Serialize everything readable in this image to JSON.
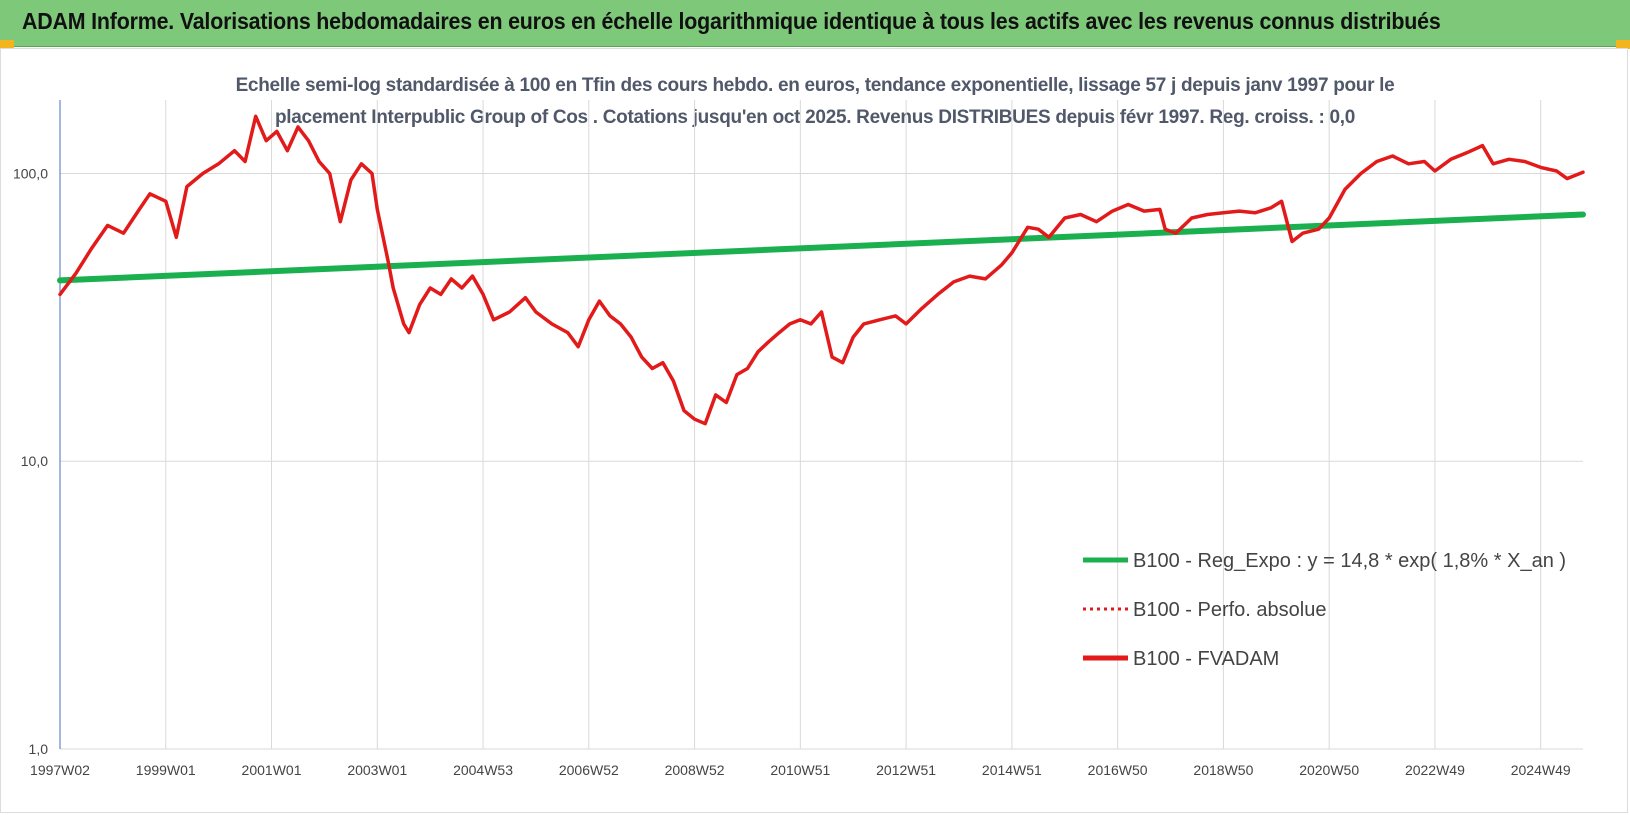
{
  "banner": {
    "title": "ADAM Informe. Valorisations hebdomadaires en euros en échelle logarithmique identique à tous les actifs avec les revenus connus distribués",
    "color": "#7ec87a"
  },
  "chart_data": {
    "type": "line",
    "title_lines": [
      "Echelle semi-log standardisée à 100 en Tfin des cours hebdo. en euros, tendance exponentielle, lissage 57 j depuis janv 1997 pour le",
      "placement Interpublic Group of Cos . Cotations jusqu'en oct 2025. Revenus DISTRIBUES depuis févr 1997. Reg. croiss. : 0,0"
    ],
    "y_scale": "log",
    "ylim": [
      1,
      180
    ],
    "y_ticks": [
      {
        "value": 1,
        "label": "1,0"
      },
      {
        "value": 10,
        "label": "10,0"
      },
      {
        "value": 100,
        "label": "100,0"
      }
    ],
    "xlim": [
      1997.0,
      2025.8
    ],
    "x_ticks": [
      {
        "value": 1997.0,
        "label": "1997W02"
      },
      {
        "value": 1999.0,
        "label": "1999W01"
      },
      {
        "value": 2001.0,
        "label": "2001W01"
      },
      {
        "value": 2003.0,
        "label": "2003W01"
      },
      {
        "value": 2005.0,
        "label": "2004W53"
      },
      {
        "value": 2007.0,
        "label": "2006W52"
      },
      {
        "value": 2009.0,
        "label": "2008W52"
      },
      {
        "value": 2011.0,
        "label": "2010W51"
      },
      {
        "value": 2013.0,
        "label": "2012W51"
      },
      {
        "value": 2015.0,
        "label": "2014W51"
      },
      {
        "value": 2017.0,
        "label": "2016W50"
      },
      {
        "value": 2019.0,
        "label": "2018W50"
      },
      {
        "value": 2021.0,
        "label": "2020W50"
      },
      {
        "value": 2023.0,
        "label": "2022W49"
      },
      {
        "value": 2025.0,
        "label": "2024W49"
      }
    ],
    "grid": "vertical",
    "legend_position": "bottom-right",
    "series": [
      {
        "name": "B100 - Reg_Expo : y = 14,8 * exp( 1,8% * X_an )",
        "color": "#1ab04f",
        "style": "solid",
        "points": [
          [
            1997.0,
            42.5
          ],
          [
            2025.8,
            72.0
          ]
        ]
      },
      {
        "name": "B100 - Perfo. absolue",
        "color": "#e31a1a",
        "style": "dotted",
        "points": []
      },
      {
        "name": "B100 - FVADAM",
        "color": "#e31a1a",
        "style": "solid",
        "points": [
          [
            1997.0,
            38
          ],
          [
            1997.3,
            45
          ],
          [
            1997.6,
            55
          ],
          [
            1997.9,
            66
          ],
          [
            1998.2,
            62
          ],
          [
            1998.5,
            75
          ],
          [
            1998.7,
            85
          ],
          [
            1999.0,
            80
          ],
          [
            1999.2,
            60
          ],
          [
            1999.4,
            90
          ],
          [
            1999.7,
            100
          ],
          [
            2000.0,
            108
          ],
          [
            2000.3,
            120
          ],
          [
            2000.5,
            110
          ],
          [
            2000.7,
            158
          ],
          [
            2000.9,
            130
          ],
          [
            2001.1,
            140
          ],
          [
            2001.3,
            120
          ],
          [
            2001.5,
            145
          ],
          [
            2001.7,
            130
          ],
          [
            2001.9,
            110
          ],
          [
            2002.1,
            100
          ],
          [
            2002.3,
            68
          ],
          [
            2002.5,
            95
          ],
          [
            2002.7,
            108
          ],
          [
            2002.9,
            100
          ],
          [
            2003.0,
            75
          ],
          [
            2003.2,
            50
          ],
          [
            2003.3,
            40
          ],
          [
            2003.5,
            30
          ],
          [
            2003.6,
            28
          ],
          [
            2003.8,
            35
          ],
          [
            2004.0,
            40
          ],
          [
            2004.2,
            38
          ],
          [
            2004.4,
            43
          ],
          [
            2004.6,
            40
          ],
          [
            2004.8,
            44
          ],
          [
            2005.0,
            38
          ],
          [
            2005.2,
            31
          ],
          [
            2005.5,
            33
          ],
          [
            2005.8,
            37
          ],
          [
            2006.0,
            33
          ],
          [
            2006.3,
            30
          ],
          [
            2006.6,
            28
          ],
          [
            2006.8,
            25
          ],
          [
            2007.0,
            31
          ],
          [
            2007.2,
            36
          ],
          [
            2007.4,
            32
          ],
          [
            2007.6,
            30
          ],
          [
            2007.8,
            27
          ],
          [
            2008.0,
            23
          ],
          [
            2008.2,
            21
          ],
          [
            2008.4,
            22
          ],
          [
            2008.6,
            19
          ],
          [
            2008.8,
            15
          ],
          [
            2009.0,
            14
          ],
          [
            2009.2,
            13.5
          ],
          [
            2009.4,
            17
          ],
          [
            2009.6,
            16
          ],
          [
            2009.8,
            20
          ],
          [
            2010.0,
            21
          ],
          [
            2010.2,
            24
          ],
          [
            2010.4,
            26
          ],
          [
            2010.6,
            28
          ],
          [
            2010.8,
            30
          ],
          [
            2011.0,
            31
          ],
          [
            2011.2,
            30
          ],
          [
            2011.4,
            33
          ],
          [
            2011.6,
            23
          ],
          [
            2011.8,
            22
          ],
          [
            2012.0,
            27
          ],
          [
            2012.2,
            30
          ],
          [
            2012.5,
            31
          ],
          [
            2012.8,
            32
          ],
          [
            2013.0,
            30
          ],
          [
            2013.3,
            34
          ],
          [
            2013.6,
            38
          ],
          [
            2013.9,
            42
          ],
          [
            2014.2,
            44
          ],
          [
            2014.5,
            43
          ],
          [
            2014.8,
            48
          ],
          [
            2015.0,
            53
          ],
          [
            2015.3,
            65
          ],
          [
            2015.5,
            64
          ],
          [
            2015.7,
            60
          ],
          [
            2016.0,
            70
          ],
          [
            2016.3,
            72
          ],
          [
            2016.6,
            68
          ],
          [
            2016.9,
            74
          ],
          [
            2017.2,
            78
          ],
          [
            2017.5,
            74
          ],
          [
            2017.8,
            75
          ],
          [
            2017.9,
            64
          ],
          [
            2018.1,
            62
          ],
          [
            2018.4,
            70
          ],
          [
            2018.7,
            72
          ],
          [
            2019.0,
            73
          ],
          [
            2019.3,
            74
          ],
          [
            2019.6,
            73
          ],
          [
            2019.9,
            76
          ],
          [
            2020.1,
            80
          ],
          [
            2020.3,
            58
          ],
          [
            2020.5,
            62
          ],
          [
            2020.8,
            64
          ],
          [
            2021.0,
            70
          ],
          [
            2021.3,
            88
          ],
          [
            2021.6,
            100
          ],
          [
            2021.9,
            110
          ],
          [
            2022.2,
            115
          ],
          [
            2022.5,
            108
          ],
          [
            2022.8,
            110
          ],
          [
            2023.0,
            102
          ],
          [
            2023.3,
            112
          ],
          [
            2023.6,
            118
          ],
          [
            2023.9,
            125
          ],
          [
            2024.1,
            108
          ],
          [
            2024.4,
            112
          ],
          [
            2024.7,
            110
          ],
          [
            2025.0,
            105
          ],
          [
            2025.3,
            102
          ],
          [
            2025.5,
            96
          ],
          [
            2025.8,
            101
          ]
        ]
      }
    ]
  }
}
